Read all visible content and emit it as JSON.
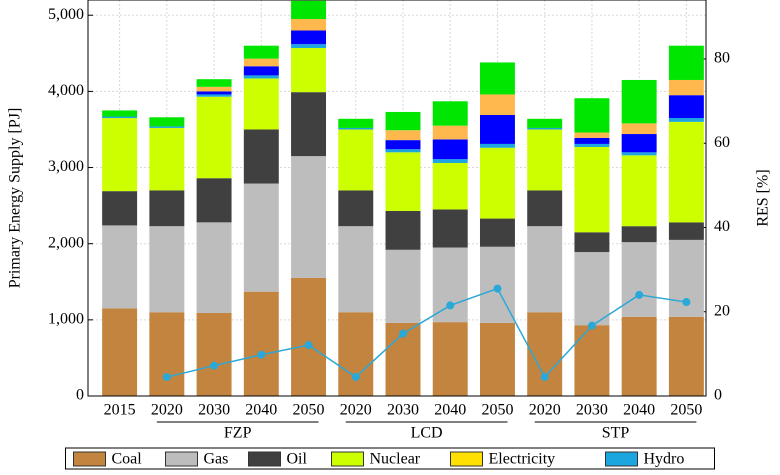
{
  "chart_data": {
    "type": "stacked-bar-line",
    "ylabel": "Primary Energy Supply [PJ]",
    "y2label": "RES [%]",
    "groups": [
      {
        "name": null,
        "categories": [
          "2015"
        ]
      },
      {
        "name": "FZP",
        "categories": [
          "2020",
          "2030",
          "2040",
          "2050"
        ]
      },
      {
        "name": "LCD",
        "categories": [
          "2020",
          "2030",
          "2040",
          "2050"
        ]
      },
      {
        "name": "STP",
        "categories": [
          "2020",
          "2030",
          "2040",
          "2050"
        ]
      }
    ],
    "series": [
      {
        "name": "Coal",
        "color": "#c3843f",
        "values": [
          1150,
          1100,
          1090,
          1370,
          1550,
          1100,
          960,
          970,
          960,
          1100,
          930,
          1040,
          1040
        ]
      },
      {
        "name": "Gas",
        "color": "#bdbdbd",
        "values": [
          1090,
          1130,
          1190,
          1420,
          1600,
          1130,
          960,
          980,
          1000,
          1130,
          960,
          980,
          1010
        ]
      },
      {
        "name": "Oil",
        "color": "#404040",
        "values": [
          450,
          470,
          580,
          710,
          840,
          470,
          510,
          500,
          370,
          470,
          260,
          210,
          230
        ]
      },
      {
        "name": "Nuclear",
        "color": "#ccff00",
        "values": [
          960,
          820,
          1070,
          670,
          580,
          800,
          770,
          610,
          930,
          800,
          1120,
          930,
          1320
        ]
      },
      {
        "name": "Electricity",
        "color": "#ffe000",
        "values": [
          0,
          0,
          0,
          0,
          0,
          0,
          0,
          0,
          0,
          0,
          0,
          0,
          0
        ]
      },
      {
        "name": "Hydro",
        "color": "#1ba6e0",
        "values": [
          20,
          20,
          30,
          40,
          50,
          20,
          40,
          50,
          50,
          20,
          40,
          40,
          50
        ]
      },
      {
        "name": null,
        "color": "#0000ff",
        "values": [
          0,
          0,
          40,
          120,
          180,
          0,
          120,
          260,
          380,
          0,
          80,
          240,
          300
        ]
      },
      {
        "name": null,
        "color": "#ffb84d",
        "values": [
          0,
          0,
          60,
          100,
          150,
          0,
          130,
          180,
          270,
          0,
          70,
          140,
          200
        ]
      },
      {
        "name": null,
        "color": "#00e600",
        "values": [
          80,
          120,
          100,
          170,
          240,
          120,
          240,
          320,
          420,
          120,
          450,
          570,
          450
        ]
      }
    ],
    "line": {
      "name": null,
      "color": "#2aa8d8",
      "axis": "y2",
      "values": [
        null,
        4.5,
        7.2,
        9.8,
        12.1,
        4.5,
        14.8,
        21.5,
        25.5,
        4.5,
        16.7,
        24,
        22.3
      ]
    },
    "ylim": [
      0,
      5200
    ],
    "yticks": [
      0,
      {
        "value": 1000,
        "label": "1,000"
      },
      {
        "value": 2000,
        "label": "2,000"
      },
      {
        "value": 3000,
        "label": "3,000"
      },
      {
        "value": 4000,
        "label": "4,000"
      },
      {
        "value": 5000,
        "label": "5,000"
      }
    ],
    "y2lim": [
      0,
      94
    ],
    "y2ticks": [
      0,
      20,
      40,
      60,
      80
    ],
    "grid": true
  }
}
